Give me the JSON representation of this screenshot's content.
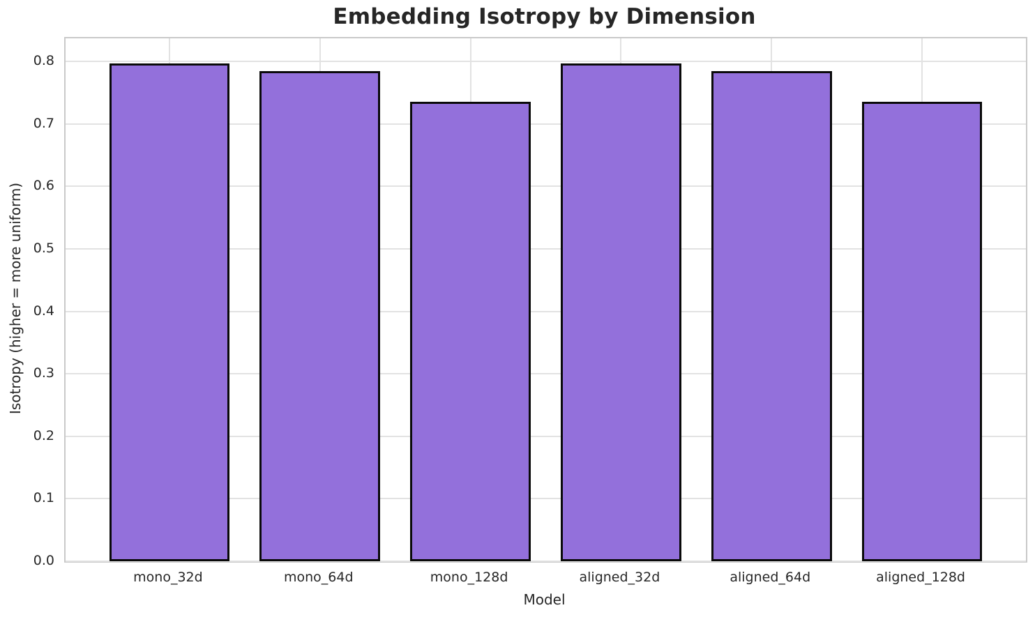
{
  "chart_data": {
    "type": "bar",
    "title": "Embedding Isotropy by Dimension",
    "xlabel": "Model",
    "ylabel": "Isotropy (higher = more uniform)",
    "categories": [
      "mono_32d",
      "mono_64d",
      "mono_128d",
      "aligned_32d",
      "aligned_64d",
      "aligned_128d"
    ],
    "values": [
      0.797,
      0.785,
      0.735,
      0.797,
      0.785,
      0.735
    ],
    "ylim": [
      0,
      0.837
    ],
    "xlim": [
      -0.69,
      5.69
    ],
    "yticks": [
      0.0,
      0.1,
      0.2,
      0.3,
      0.4,
      0.5,
      0.6,
      0.7,
      0.8
    ],
    "ytick_labels": [
      "0.0",
      "0.1",
      "0.2",
      "0.3",
      "0.4",
      "0.5",
      "0.6",
      "0.7",
      "0.8"
    ],
    "grid": true,
    "legend": false,
    "bar_width": 0.8,
    "bar_color": "#9370DB",
    "bar_edge_color": "#0a0a0a"
  },
  "colors": {
    "background": "#ffffff",
    "grid": "#e2e2e2",
    "spine": "#c9c9c9",
    "text": "#262626",
    "bar_fill": "#9370DB",
    "bar_edge": "#0a0a0a"
  }
}
